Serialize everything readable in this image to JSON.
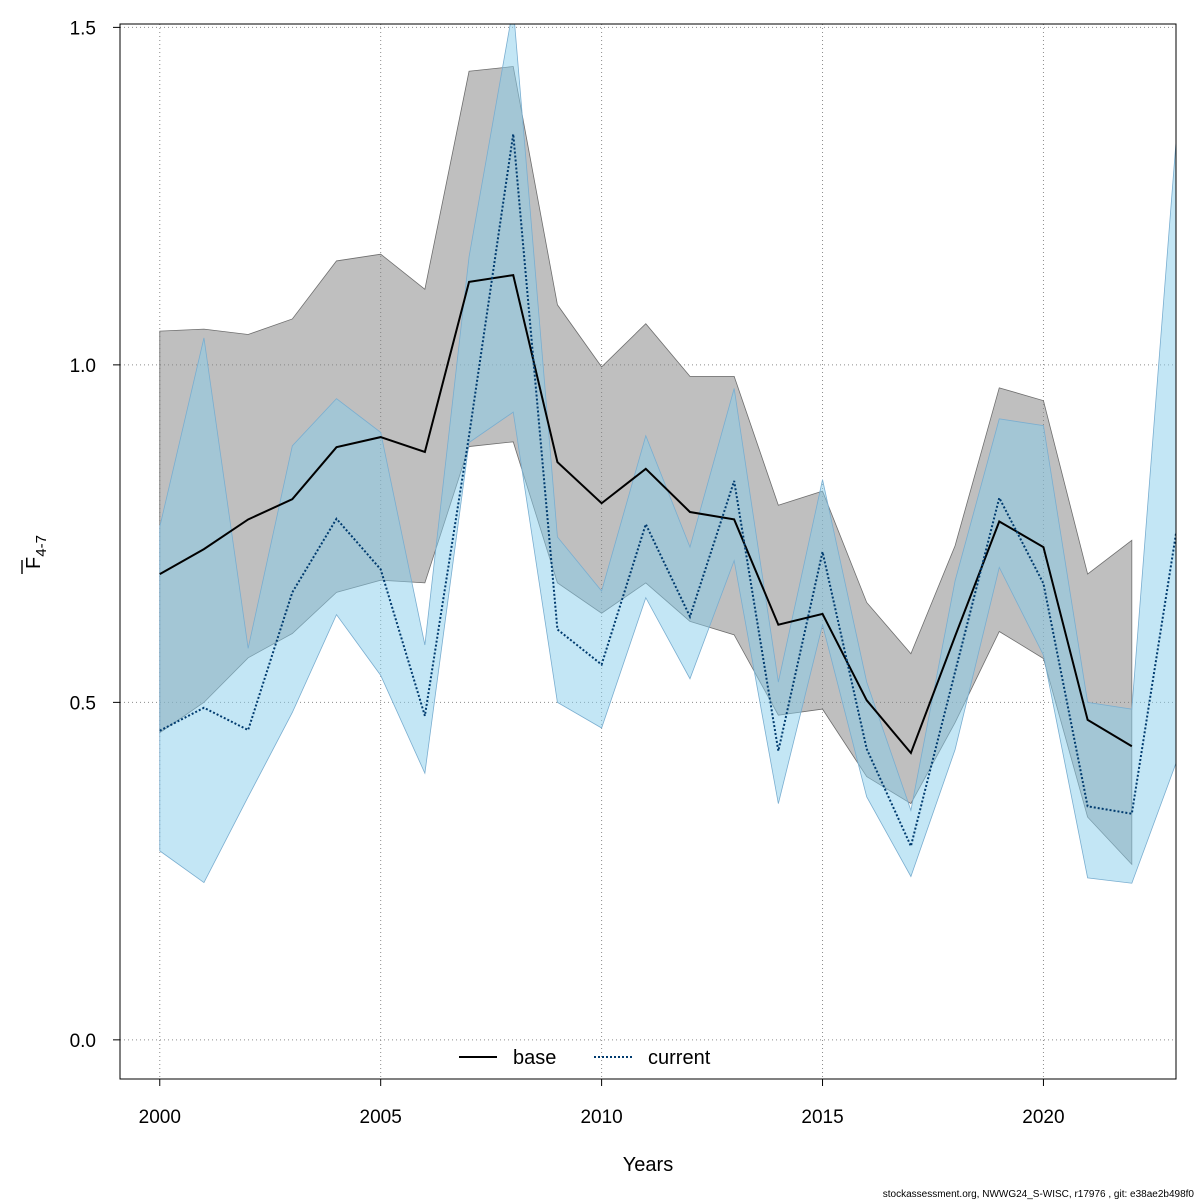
{
  "chart_data": {
    "type": "line",
    "title": "",
    "xlabel": "Years",
    "ylabel_main": "F",
    "ylabel_sub": "4-7",
    "xlim": [
      1999.1,
      2023
    ],
    "ylim": [
      -0.058,
      1.505
    ],
    "xticks": [
      2000,
      2005,
      2010,
      2015,
      2020
    ],
    "xtick_labels": [
      "2000",
      "2005",
      "2010",
      "2015",
      "2020"
    ],
    "yticks": [
      0,
      0.5,
      1,
      1.5
    ],
    "ytick_labels": [
      "0.0",
      "0.5",
      "1.0",
      "1.5"
    ],
    "grid": true,
    "legend_position": "bottom-center",
    "series": [
      {
        "name": "base",
        "color": "#000000",
        "band_color": "#808080",
        "line_style": "solid",
        "x": [
          2000,
          2001,
          2002,
          2003,
          2004,
          2005,
          2006,
          2007,
          2008,
          2009,
          2010,
          2011,
          2012,
          2013,
          2014,
          2015,
          2016,
          2017,
          2018,
          2019,
          2020,
          2021,
          2022
        ],
        "values": [
          0.69,
          0.727,
          0.771,
          0.801,
          0.878,
          0.893,
          0.871,
          1.123,
          1.133,
          0.856,
          0.795,
          0.846,
          0.782,
          0.771,
          0.615,
          0.631,
          0.503,
          0.425,
          0.598,
          0.768,
          0.73,
          0.474,
          0.435
        ],
        "lower": [
          0.455,
          0.5,
          0.566,
          0.602,
          0.663,
          0.681,
          0.677,
          0.879,
          0.886,
          0.677,
          0.632,
          0.677,
          0.62,
          0.6,
          0.481,
          0.49,
          0.39,
          0.35,
          0.47,
          0.605,
          0.565,
          0.33,
          0.26
        ],
        "upper": [
          1.05,
          1.053,
          1.045,
          1.068,
          1.154,
          1.164,
          1.112,
          1.435,
          1.442,
          1.089,
          0.997,
          1.061,
          0.983,
          0.983,
          0.792,
          0.813,
          0.648,
          0.572,
          0.732,
          0.966,
          0.947,
          0.69,
          0.74
        ]
      },
      {
        "name": "current",
        "color": "#003b6f",
        "band_color": "#87ceeb",
        "line_style": "dotted",
        "x": [
          2000,
          2001,
          2002,
          2003,
          2004,
          2005,
          2006,
          2007,
          2008,
          2009,
          2010,
          2011,
          2012,
          2013,
          2014,
          2015,
          2016,
          2017,
          2018,
          2019,
          2020,
          2021,
          2022,
          2023
        ],
        "values": [
          0.458,
          0.492,
          0.459,
          0.663,
          0.772,
          0.697,
          0.48,
          0.895,
          1.342,
          0.608,
          0.556,
          0.764,
          0.627,
          0.828,
          0.428,
          0.723,
          0.431,
          0.287,
          0.545,
          0.803,
          0.676,
          0.346,
          0.335,
          0.75
        ],
        "lower": [
          0.28,
          0.233,
          0.36,
          0.485,
          0.63,
          0.54,
          0.395,
          0.885,
          0.93,
          0.5,
          0.462,
          0.655,
          0.535,
          0.71,
          0.35,
          0.615,
          0.36,
          0.242,
          0.43,
          0.7,
          0.57,
          0.24,
          0.232,
          0.41
        ],
        "upper": [
          0.76,
          1.04,
          0.58,
          0.88,
          0.95,
          0.9,
          0.585,
          1.16,
          1.53,
          0.745,
          0.665,
          0.895,
          0.73,
          0.965,
          0.53,
          0.83,
          0.53,
          0.34,
          0.68,
          0.92,
          0.91,
          0.5,
          0.49,
          1.33
        ]
      }
    ],
    "footer": "stockassessment.org, NWWG24_S-WISC, r17976 , git: e38ae2b498f0"
  }
}
